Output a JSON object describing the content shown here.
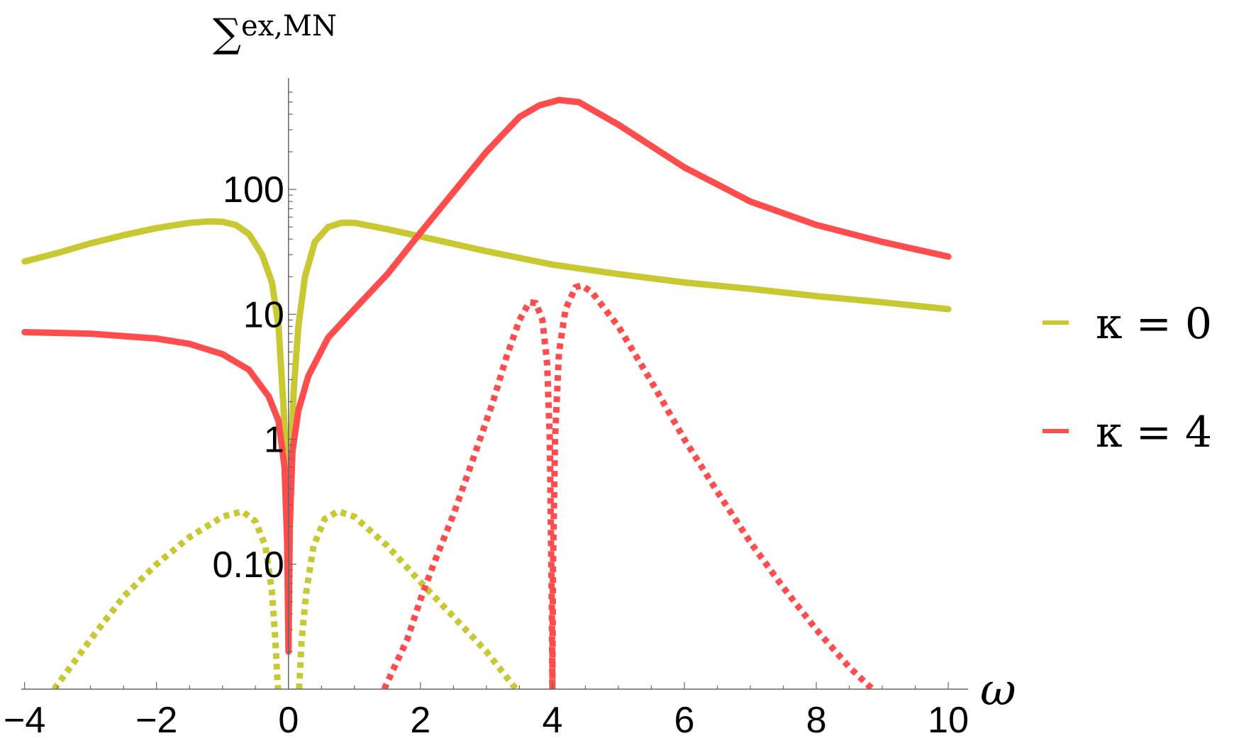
{
  "chart_data": {
    "type": "line",
    "title": "",
    "xlabel": "ω",
    "ylabel": "∑",
    "ylabel_superscript": "ex,MN",
    "xlim": [
      -4.05,
      10.3
    ],
    "ylim": [
      0.01,
      600
    ],
    "yscale": "log",
    "grid": false,
    "legend_position": "right",
    "x_ticks": [
      -4,
      -2,
      0,
      2,
      4,
      6,
      8,
      10
    ],
    "x_tick_labels": [
      "−4",
      "−2",
      "0",
      "2",
      "4",
      "6",
      "8",
      "10"
    ],
    "y_ticks": [
      0.1,
      1,
      10,
      100
    ],
    "y_tick_labels": [
      "0.10",
      "1",
      "10",
      "100"
    ],
    "legend": [
      {
        "label": "κ = 0",
        "color": "#c8c832"
      },
      {
        "label": "κ = 4",
        "color": "#ff4d4d"
      }
    ],
    "series": [
      {
        "legend_index": 0,
        "style": "solid",
        "color": "#c8c832",
        "points": [
          [
            -4,
            26.5
          ],
          [
            -3.5,
            31
          ],
          [
            -3,
            37
          ],
          [
            -2.5,
            43
          ],
          [
            -2,
            49
          ],
          [
            -1.5,
            54
          ],
          [
            -1.2,
            55.5
          ],
          [
            -1,
            55
          ],
          [
            -0.8,
            52
          ],
          [
            -0.6,
            44
          ],
          [
            -0.4,
            30
          ],
          [
            -0.25,
            18
          ],
          [
            -0.15,
            8
          ],
          [
            -0.08,
            2
          ],
          [
            -0.03,
            0.6
          ],
          [
            0,
            0.35
          ],
          [
            0.03,
            0.6
          ],
          [
            0.08,
            2.5
          ],
          [
            0.15,
            8
          ],
          [
            0.25,
            20
          ],
          [
            0.4,
            38
          ],
          [
            0.6,
            50
          ],
          [
            0.8,
            54
          ],
          [
            1,
            54
          ],
          [
            1.5,
            48
          ],
          [
            2,
            42
          ],
          [
            3,
            32
          ],
          [
            4,
            25
          ],
          [
            5,
            21
          ],
          [
            6,
            18
          ],
          [
            7,
            16
          ],
          [
            8,
            14
          ],
          [
            9,
            12.5
          ],
          [
            10,
            11
          ]
        ]
      },
      {
        "legend_index": 1,
        "style": "solid",
        "color": "#ff4d4d",
        "points": [
          [
            -4,
            7.2
          ],
          [
            -3,
            7
          ],
          [
            -2,
            6.4
          ],
          [
            -1.5,
            5.8
          ],
          [
            -1,
            4.8
          ],
          [
            -0.6,
            3.6
          ],
          [
            -0.3,
            2.2
          ],
          [
            -0.15,
            1.4
          ],
          [
            -0.06,
            0.6
          ],
          [
            -0.02,
            0.15
          ],
          [
            0,
            0.02
          ],
          [
            0.02,
            0.2
          ],
          [
            0.06,
            0.8
          ],
          [
            0.15,
            1.7
          ],
          [
            0.3,
            3.2
          ],
          [
            0.6,
            6.5
          ],
          [
            1,
            11
          ],
          [
            1.5,
            21
          ],
          [
            2,
            45
          ],
          [
            2.5,
            95
          ],
          [
            3,
            200
          ],
          [
            3.5,
            380
          ],
          [
            3.8,
            470
          ],
          [
            4.1,
            520
          ],
          [
            4.4,
            500
          ],
          [
            5,
            330
          ],
          [
            6,
            150
          ],
          [
            7,
            80
          ],
          [
            8,
            52
          ],
          [
            9,
            38
          ],
          [
            10,
            29
          ]
        ]
      },
      {
        "legend_index": 0,
        "style": "dotted",
        "color": "#c8c832",
        "points": [
          [
            -3.55,
            0.01
          ],
          [
            -3,
            0.025
          ],
          [
            -2.5,
            0.055
          ],
          [
            -2,
            0.1
          ],
          [
            -1.5,
            0.165
          ],
          [
            -1,
            0.24
          ],
          [
            -0.7,
            0.265
          ],
          [
            -0.5,
            0.22
          ],
          [
            -0.35,
            0.14
          ],
          [
            -0.25,
            0.06
          ],
          [
            -0.2,
            0.025
          ],
          [
            -0.16,
            0.01
          ]
        ]
      },
      {
        "legend_index": 0,
        "style": "dotted",
        "color": "#c8c832",
        "points": [
          [
            0.16,
            0.01
          ],
          [
            0.2,
            0.025
          ],
          [
            0.27,
            0.06
          ],
          [
            0.38,
            0.14
          ],
          [
            0.55,
            0.23
          ],
          [
            0.75,
            0.265
          ],
          [
            1,
            0.24
          ],
          [
            1.5,
            0.14
          ],
          [
            2,
            0.072
          ],
          [
            2.5,
            0.038
          ],
          [
            3,
            0.02
          ],
          [
            3.45,
            0.01
          ]
        ]
      },
      {
        "legend_index": 1,
        "style": "dotted",
        "color": "#ff4d4d",
        "points": [
          [
            1.45,
            0.01
          ],
          [
            1.8,
            0.025
          ],
          [
            2,
            0.052
          ],
          [
            2.2,
            0.1
          ],
          [
            2.5,
            0.25
          ],
          [
            2.8,
            0.7
          ],
          [
            3.1,
            2
          ],
          [
            3.3,
            4.5
          ],
          [
            3.5,
            9
          ],
          [
            3.65,
            12.5
          ],
          [
            3.75,
            12.3
          ],
          [
            3.85,
            9
          ],
          [
            3.92,
            4
          ],
          [
            3.96,
            1
          ],
          [
            3.99,
            0.05
          ],
          [
            4,
            0.01
          ]
        ]
      },
      {
        "legend_index": 1,
        "style": "dotted",
        "color": "#ff4d4d",
        "points": [
          [
            4,
            0.01
          ],
          [
            4.01,
            0.1
          ],
          [
            4.04,
            1
          ],
          [
            4.1,
            5
          ],
          [
            4.2,
            11
          ],
          [
            4.35,
            16.5
          ],
          [
            4.45,
            17
          ],
          [
            4.6,
            15
          ],
          [
            5,
            8
          ],
          [
            5.5,
            2.9
          ],
          [
            6,
            1
          ],
          [
            6.5,
            0.38
          ],
          [
            7,
            0.15
          ],
          [
            7.5,
            0.065
          ],
          [
            8,
            0.03
          ],
          [
            8.5,
            0.015
          ],
          [
            8.85,
            0.01
          ]
        ]
      }
    ]
  }
}
